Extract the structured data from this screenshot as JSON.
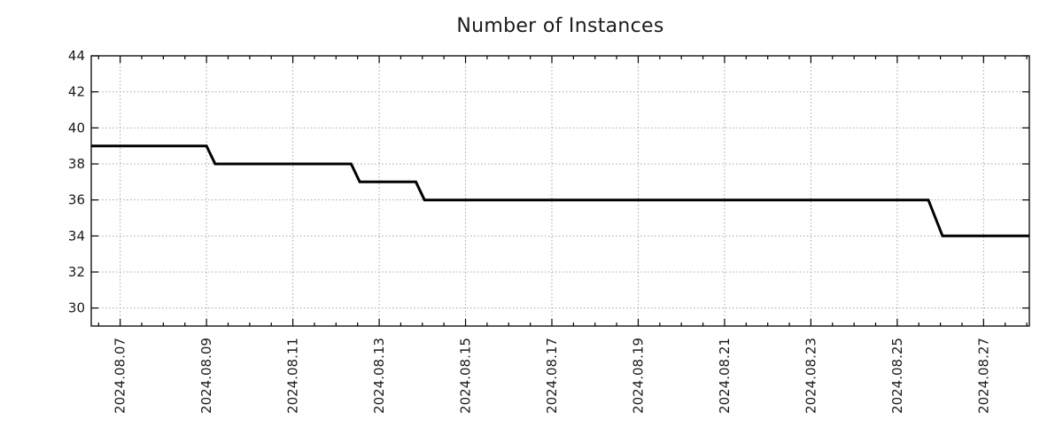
{
  "page": {
    "title": "Number of Instances"
  },
  "colors": {
    "background": "#ffffff",
    "line": "#000000",
    "axis": "#000000",
    "grid": "#a6a6a6",
    "text": "#1a1a1a"
  },
  "chart_data": {
    "type": "line",
    "style": "step",
    "title": "Number of Instances",
    "xlabel": "",
    "ylabel": "",
    "legend": false,
    "grid": true,
    "x_unit": "day of August 2024",
    "x_axis": {
      "range": [
        6.33,
        28.06
      ],
      "major_ticks": [
        7,
        9,
        11,
        13,
        15,
        17,
        19,
        21,
        23,
        25,
        27
      ],
      "tick_labels": [
        "2024.08.07",
        "2024.08.09",
        "2024.08.11",
        "2024.08.13",
        "2024.08.15",
        "2024.08.17",
        "2024.08.19",
        "2024.08.21",
        "2024.08.23",
        "2024.08.25",
        "2024.08.27"
      ],
      "minor_tick_interval": 0.5
    },
    "y_axis": {
      "range": [
        29,
        44
      ],
      "major_ticks": [
        30,
        32,
        34,
        36,
        38,
        40,
        42,
        44
      ],
      "tick_labels": [
        "30",
        "32",
        "34",
        "36",
        "38",
        "40",
        "42",
        "44"
      ]
    },
    "series": [
      {
        "name": "instances",
        "color": "#000000",
        "width": 3,
        "points": [
          [
            6.33,
            39
          ],
          [
            9.0,
            39
          ],
          [
            9.2,
            38
          ],
          [
            12.35,
            38
          ],
          [
            12.55,
            37
          ],
          [
            13.85,
            37
          ],
          [
            14.05,
            36
          ],
          [
            25.72,
            36
          ],
          [
            26.05,
            34
          ],
          [
            28.06,
            34
          ]
        ]
      }
    ]
  }
}
